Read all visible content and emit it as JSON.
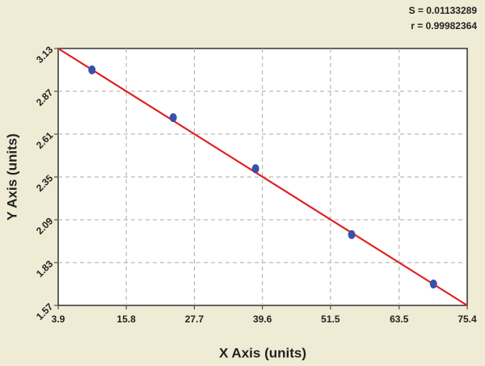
{
  "chart_data": {
    "type": "scatter",
    "x_label": "X Axis (units)",
    "y_label": "Y Axis (units)",
    "annotations": [
      "S = 0.01133289",
      "r = 0.99982364"
    ],
    "x": [
      9.8,
      24.0,
      38.4,
      55.2,
      69.5
    ],
    "values": [
      3.0,
      2.71,
      2.4,
      2.0,
      1.7
    ],
    "color": "#3a4fa8",
    "fit_line": {
      "x": [
        3.9,
        75.4
      ],
      "y": [
        3.13,
        1.57
      ],
      "color": "#e02020"
    },
    "xlim": [
      3.9,
      75.4
    ],
    "xticks": [
      3.9,
      15.8,
      27.7,
      39.6,
      51.5,
      63.5,
      75.4
    ],
    "ylim": [
      1.57,
      3.13
    ],
    "yticks": [
      1.57,
      1.83,
      2.09,
      2.35,
      2.61,
      2.87,
      3.13
    ],
    "grid": true
  }
}
